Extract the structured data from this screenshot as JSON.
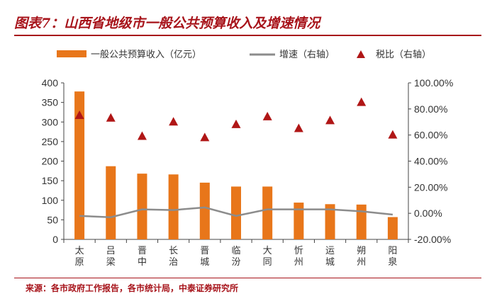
{
  "header": {
    "title": "图表7：山西省地级市一般公共预算收入及增速情况"
  },
  "footer": {
    "source": "来源：各市政府工作报告，各市统计局，中泰证券研究所"
  },
  "colors": {
    "bar": "#e8761a",
    "line": "#8c8c8c",
    "marker": "#b01616",
    "accent": "#a7131a"
  },
  "chart_data": {
    "type": "bar",
    "title": "山西省地级市一般公共预算收入及增速情况",
    "categories": [
      "太原",
      "吕梁",
      "晋中",
      "长治",
      "晋城",
      "临汾",
      "大同",
      "忻州",
      "运城",
      "朔州",
      "阳泉"
    ],
    "series": [
      {
        "name": "一般公共预算收入（亿元）",
        "type": "bar",
        "axis": "left",
        "values": [
          378,
          187,
          168,
          166,
          145,
          135,
          135,
          94,
          90,
          89,
          57
        ]
      },
      {
        "name": "增速（右轴）",
        "type": "line",
        "axis": "right",
        "unit": "%",
        "values": [
          -2.0,
          -3.0,
          3.0,
          2.5,
          4.5,
          -2.0,
          3.0,
          3.0,
          3.0,
          1.5,
          -1.0
        ]
      },
      {
        "name": "税比（右轴）",
        "type": "scatter",
        "axis": "right",
        "unit": "%",
        "values": [
          75,
          73,
          59,
          70,
          58,
          68,
          74,
          65,
          71,
          85,
          60
        ]
      }
    ],
    "y_left": {
      "min": 0,
      "max": 400,
      "step": 50,
      "ticks": [
        "0",
        "50",
        "100",
        "150",
        "200",
        "250",
        "300",
        "350",
        "400"
      ]
    },
    "y_right": {
      "min": -20,
      "max": 100,
      "step": 20,
      "ticks": [
        "-20.00%",
        "0.00%",
        "20.00%",
        "40.00%",
        "60.00%",
        "80.00%",
        "100.00%"
      ]
    },
    "legend": [
      "一般公共预算收入（亿元）",
      "增速（右轴）",
      "税比（右轴）"
    ],
    "legend_position": "top"
  }
}
